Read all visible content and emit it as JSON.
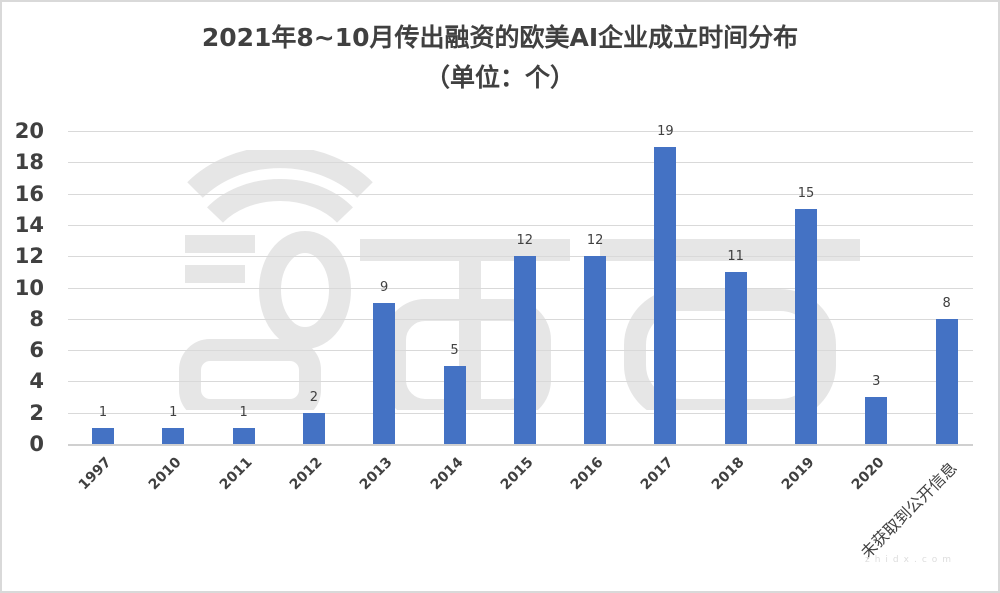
{
  "title_line1": "2021年8~10月传出融资的欧美AI企业成立时间分布",
  "title_line2": "（单位：个）",
  "watermark": {
    "text": "智東西",
    "subtext": "zhidx.com"
  },
  "colors": {
    "bar": "#4472c4",
    "grid": "#d9d9d9",
    "text": "#404040"
  },
  "y_ticks": [
    "0",
    "2",
    "4",
    "6",
    "8",
    "10",
    "12",
    "14",
    "16",
    "18",
    "20"
  ],
  "chart_data": {
    "type": "bar",
    "title": "2021年8~10月传出融资的欧美AI企业成立时间分布（单位：个）",
    "xlabel": "",
    "ylabel": "",
    "categories": [
      "1997",
      "2010",
      "2011",
      "2012",
      "2013",
      "2014",
      "2015",
      "2016",
      "2017",
      "2018",
      "2019",
      "2020",
      "未获取到公开信息"
    ],
    "values": [
      1,
      1,
      1,
      2,
      9,
      5,
      12,
      12,
      19,
      11,
      15,
      3,
      8
    ],
    "ylim": [
      0,
      20
    ],
    "yticks": [
      0,
      2,
      4,
      6,
      8,
      10,
      12,
      14,
      16,
      18,
      20
    ],
    "grid": true,
    "legend": "none",
    "data_labels": true
  }
}
